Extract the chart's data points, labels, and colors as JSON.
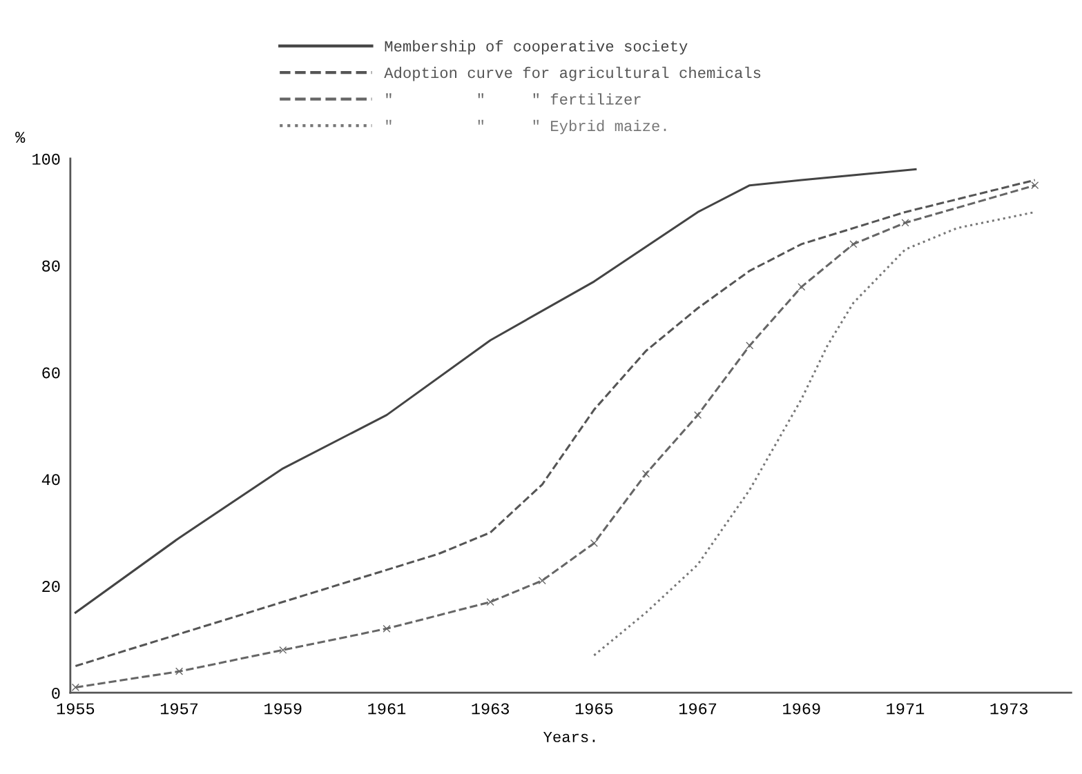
{
  "chart_data": {
    "type": "line",
    "xlabel": "Years.",
    "ylabel": "%",
    "xlim": [
      1954.9,
      1974.2
    ],
    "ylim": [
      0,
      100
    ],
    "xticks": [
      1955,
      1957,
      1959,
      1961,
      1963,
      1965,
      1967,
      1969,
      1971,
      1973
    ],
    "yticks": [
      0,
      20,
      40,
      60,
      80,
      100
    ],
    "grid": false,
    "legend": "top",
    "marker": "none",
    "series": [
      {
        "name": "Membership of cooperative society",
        "color": "#444444",
        "line_style": "solid",
        "x": [
          1955,
          1957,
          1959,
          1961,
          1963,
          1965,
          1967,
          1968,
          1969,
          1971.2
        ],
        "values": [
          15,
          29,
          42,
          52,
          66,
          77,
          90,
          95,
          96,
          98
        ]
      },
      {
        "name": "Adoption curve for agricultural chemicals",
        "color": "#555555",
        "line_style": "dashed",
        "x": [
          1955,
          1957,
          1959,
          1961,
          1962,
          1963,
          1964,
          1965,
          1966,
          1967,
          1968,
          1969,
          1971,
          1973.5
        ],
        "values": [
          5,
          11,
          17,
          23,
          26,
          30,
          39,
          53,
          64,
          72,
          79,
          84,
          90,
          96
        ]
      },
      {
        "name": "\"         \"     \" fertilizer",
        "color": "#666666",
        "line_style": "dashed",
        "marker": "cross",
        "x": [
          1955,
          1957,
          1959,
          1961,
          1963,
          1964,
          1965,
          1966,
          1967,
          1968,
          1969,
          1970,
          1971,
          1973.5
        ],
        "values": [
          1,
          4,
          8,
          12,
          17,
          21,
          28,
          41,
          52,
          65,
          76,
          84,
          88,
          95
        ]
      },
      {
        "name": "\"         \"     \" Eybrid maize.",
        "color": "#777777",
        "line_style": "dotted",
        "x": [
          1965,
          1966,
          1967,
          1968,
          1969,
          1969.5,
          1970,
          1971,
          1972,
          1973.5
        ],
        "values": [
          7,
          15,
          24,
          38,
          55,
          65,
          73,
          83,
          87,
          90
        ]
      }
    ]
  }
}
